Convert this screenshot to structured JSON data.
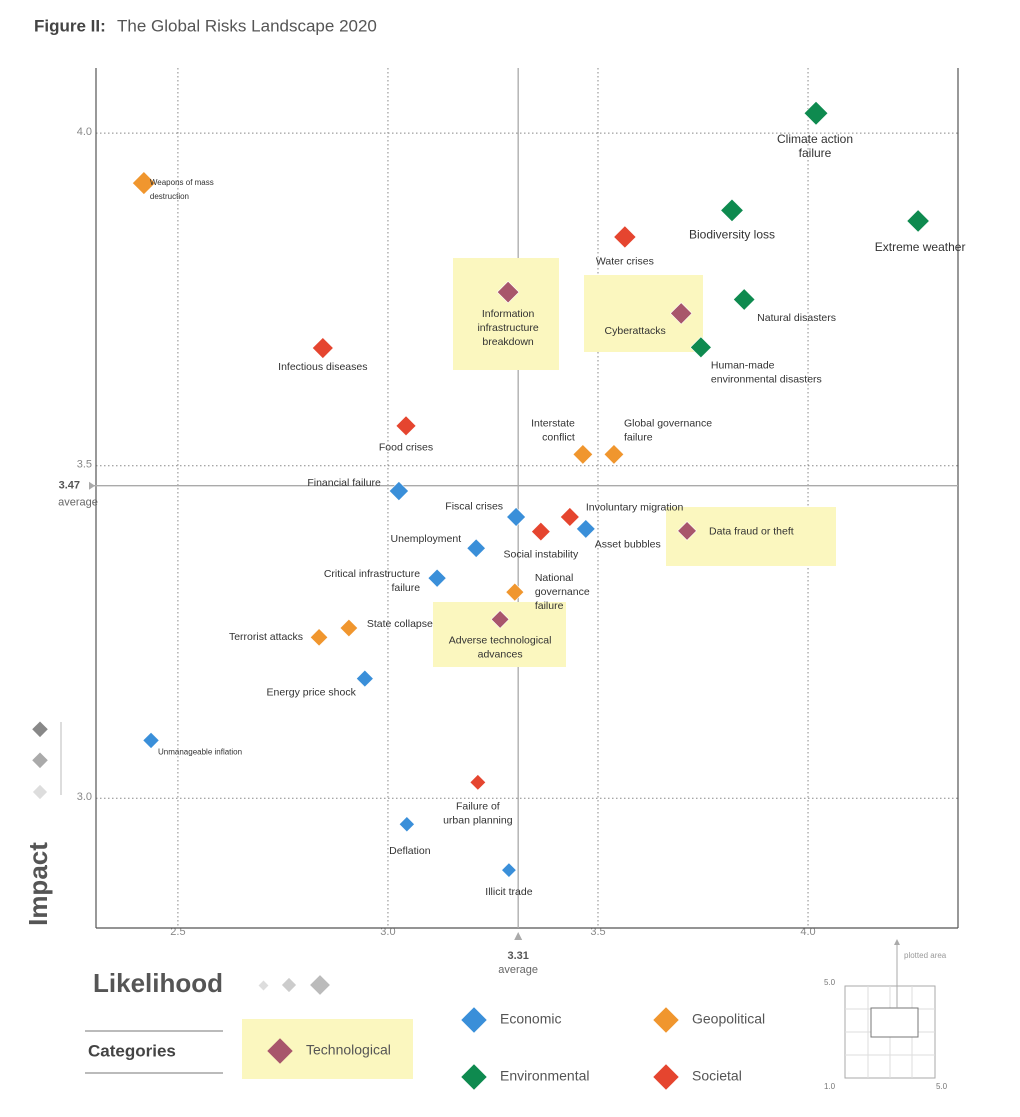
{
  "chart_data": {
    "type": "scatter",
    "title_prefix": "Figure II:",
    "title": "The Global Risks Landscape 2020",
    "x_label": "Likelihood",
    "y_label": "Impact",
    "legend_title": "Categories",
    "xlim": [
      2.305,
      4.357
    ],
    "ylim": [
      2.805,
      4.098
    ],
    "xticks": [
      2.5,
      {
        "value": 3,
        "label": "3.0"
      },
      3.5,
      {
        "value": 4,
        "label": "4.0"
      }
    ],
    "yticks": [
      {
        "value": 3,
        "label": "3.0"
      },
      3.5,
      {
        "value": 4,
        "label": "4.0"
      }
    ],
    "averages": {
      "x": 3.31,
      "y": 3.47,
      "label": "average"
    },
    "grid": true,
    "inset": {
      "label": "plotted area",
      "top": "5.0",
      "min": "1.0",
      "right": "5.0"
    },
    "series": [
      {
        "name": "Economic",
        "color": "#3a8fd9",
        "labels": [
          "Financial failure",
          "Fiscal crises",
          "Asset bubbles",
          "Unemployment",
          "Critical infrastructure\nfailure",
          "Energy price shock",
          "Unmanageable inflation",
          "Deflation",
          "Illicit trade"
        ],
        "x": [
          3.026,
          3.305,
          3.471,
          3.21,
          3.117,
          2.945,
          2.436,
          3.045,
          3.288
        ],
        "values": [
          3.462,
          3.423,
          3.405,
          3.376,
          3.331,
          3.18,
          3.087,
          2.961,
          2.892
        ]
      },
      {
        "name": "Geopolitical",
        "color": "#f0962e",
        "labels": [
          "Weapons of mass\ndestruction",
          "Interstate\nconflict",
          "Global governance\nfailure",
          "National\ngovernance\nfailure",
          "State collapse",
          "Terrorist attacks"
        ],
        "x": [
          2.419,
          3.464,
          3.538,
          3.302,
          2.907,
          2.836
        ],
        "values": [
          3.925,
          3.517,
          3.517,
          3.31,
          3.256,
          3.242
        ]
      },
      {
        "name": "Environmental",
        "color": "#0e8a4f",
        "labels": [
          "Climate action\nfailure",
          "Biodiversity loss",
          "Extreme weather",
          "Natural disasters",
          "Human-made\nenvironmental disasters"
        ],
        "x": [
          4.019,
          3.819,
          4.262,
          3.848,
          3.745
        ],
        "values": [
          4.03,
          3.884,
          3.868,
          3.75,
          3.678
        ]
      },
      {
        "name": "Societal",
        "color": "#e5452f",
        "labels": [
          "Water crises",
          "Infectious diseases",
          "Food crises",
          "Involuntary migration",
          "Social instability",
          "Failure of\nurban planning"
        ],
        "x": [
          3.564,
          2.845,
          3.043,
          3.433,
          3.364,
          3.214
        ],
        "values": [
          3.844,
          3.677,
          3.56,
          3.423,
          3.401,
          3.024
        ]
      },
      {
        "name": "Technological",
        "color": "#a8566b",
        "labels": [
          "Information\ninfrastructure\nbreakdown",
          "Cyberattacks",
          "Data fraud or theft",
          "Adverse technological\nadvances"
        ],
        "x": [
          3.286,
          3.698,
          3.712,
          3.267
        ],
        "values": [
          3.761,
          3.729,
          3.402,
          3.269
        ]
      }
    ]
  }
}
